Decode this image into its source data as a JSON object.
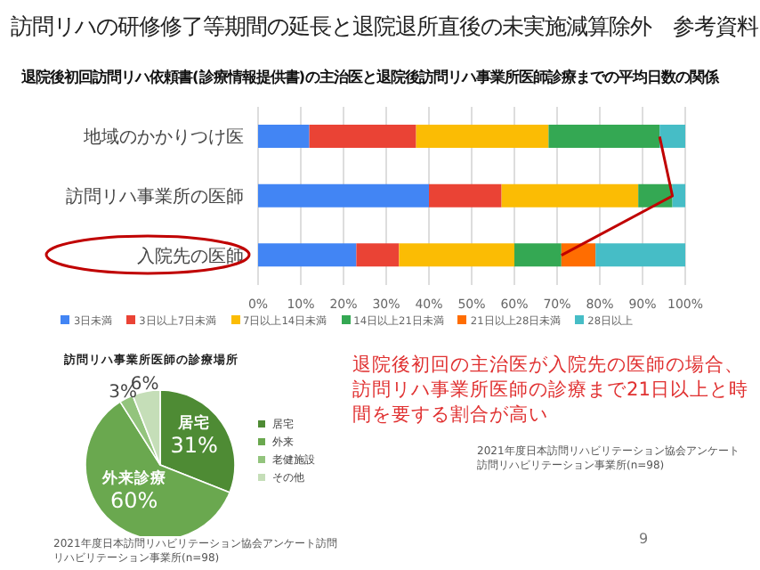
{
  "chart_data": [
    {
      "type": "bar",
      "orientation": "horizontal",
      "stacked": true,
      "title": "訪問リハの研修修了等期間の延長と退院退所直後の未実施減算除外　参考資料",
      "subtitle": "退院後初回訪問リハ依頼書(診療情報提供書)の主治医と退院後訪問リハ事業所医師診療までの平均日数の関係",
      "categories": [
        "地域のかかりつけ医",
        "訪問リハ事業所の医師",
        "入院先の医師"
      ],
      "series": [
        {
          "name": "3日未満",
          "color": "#4285f4",
          "values": [
            12,
            40,
            23
          ]
        },
        {
          "name": "3日以上7日未満",
          "color": "#ea4335",
          "values": [
            25,
            17,
            10
          ]
        },
        {
          "name": "7日以上14日未満",
          "color": "#fbbc04",
          "values": [
            31,
            32,
            27
          ]
        },
        {
          "name": "14日以上21日未満",
          "color": "#34a853",
          "values": [
            26,
            8,
            11
          ]
        },
        {
          "name": "21日以上28日未満",
          "color": "#ff6d01",
          "values": [
            0,
            0,
            8
          ]
        },
        {
          "name": "28日以上",
          "color": "#46bdc6",
          "values": [
            6,
            3,
            21
          ]
        },
        {
          "type": "line",
          "color": "#c00000",
          "values": [
            94,
            97,
            71
          ]
        }
      ],
      "xlim": [
        0,
        100
      ],
      "xticks": [
        {
          "value": 0,
          "label": "0%"
        },
        {
          "value": 10,
          "label": "10%"
        },
        {
          "value": 20,
          "label": "20%"
        },
        {
          "value": 30,
          "label": "30%"
        },
        {
          "value": 40,
          "label": "40%"
        },
        {
          "value": 50,
          "label": "50%"
        },
        {
          "value": 60,
          "label": "60%"
        },
        {
          "value": 70,
          "label": "70%"
        },
        {
          "value": 80,
          "label": "80%"
        },
        {
          "value": 90,
          "label": "90%"
        },
        {
          "value": 100,
          "label": "100%"
        }
      ],
      "grid": "x",
      "legend": "bottom",
      "annotations": [
        "退院後初回の主治医が入院先の医師の場合、訪問リハ事業所医師の診療まで21日以上と時間を要する割合が高い",
        "2021年度日本訪問リハビリテーション協会アンケート訪問リハビリテーション事業所(n=98)",
        "9"
      ]
    },
    {
      "type": "pie",
      "title": "訪問リハ事業所医師の診療場所",
      "categories": [
        "居宅",
        "外来",
        "老健施設",
        "その他"
      ],
      "values": [
        31,
        60,
        3,
        6
      ],
      "colors": [
        "#4e8b34",
        "#6aa84f",
        "#93c47d",
        "#c5deb8"
      ],
      "value_labels": [
        "31%",
        "60%",
        "3%",
        "6%"
      ],
      "legend": "right",
      "annotations": [
        {
          "text": "居宅",
          "x": "居宅"
        },
        {
          "text": "外来診療",
          "x": "外来"
        },
        "2021年度日本訪問リハビリテーション協会アンケート訪問リハビリテーション事業所(n=98)"
      ]
    }
  ]
}
